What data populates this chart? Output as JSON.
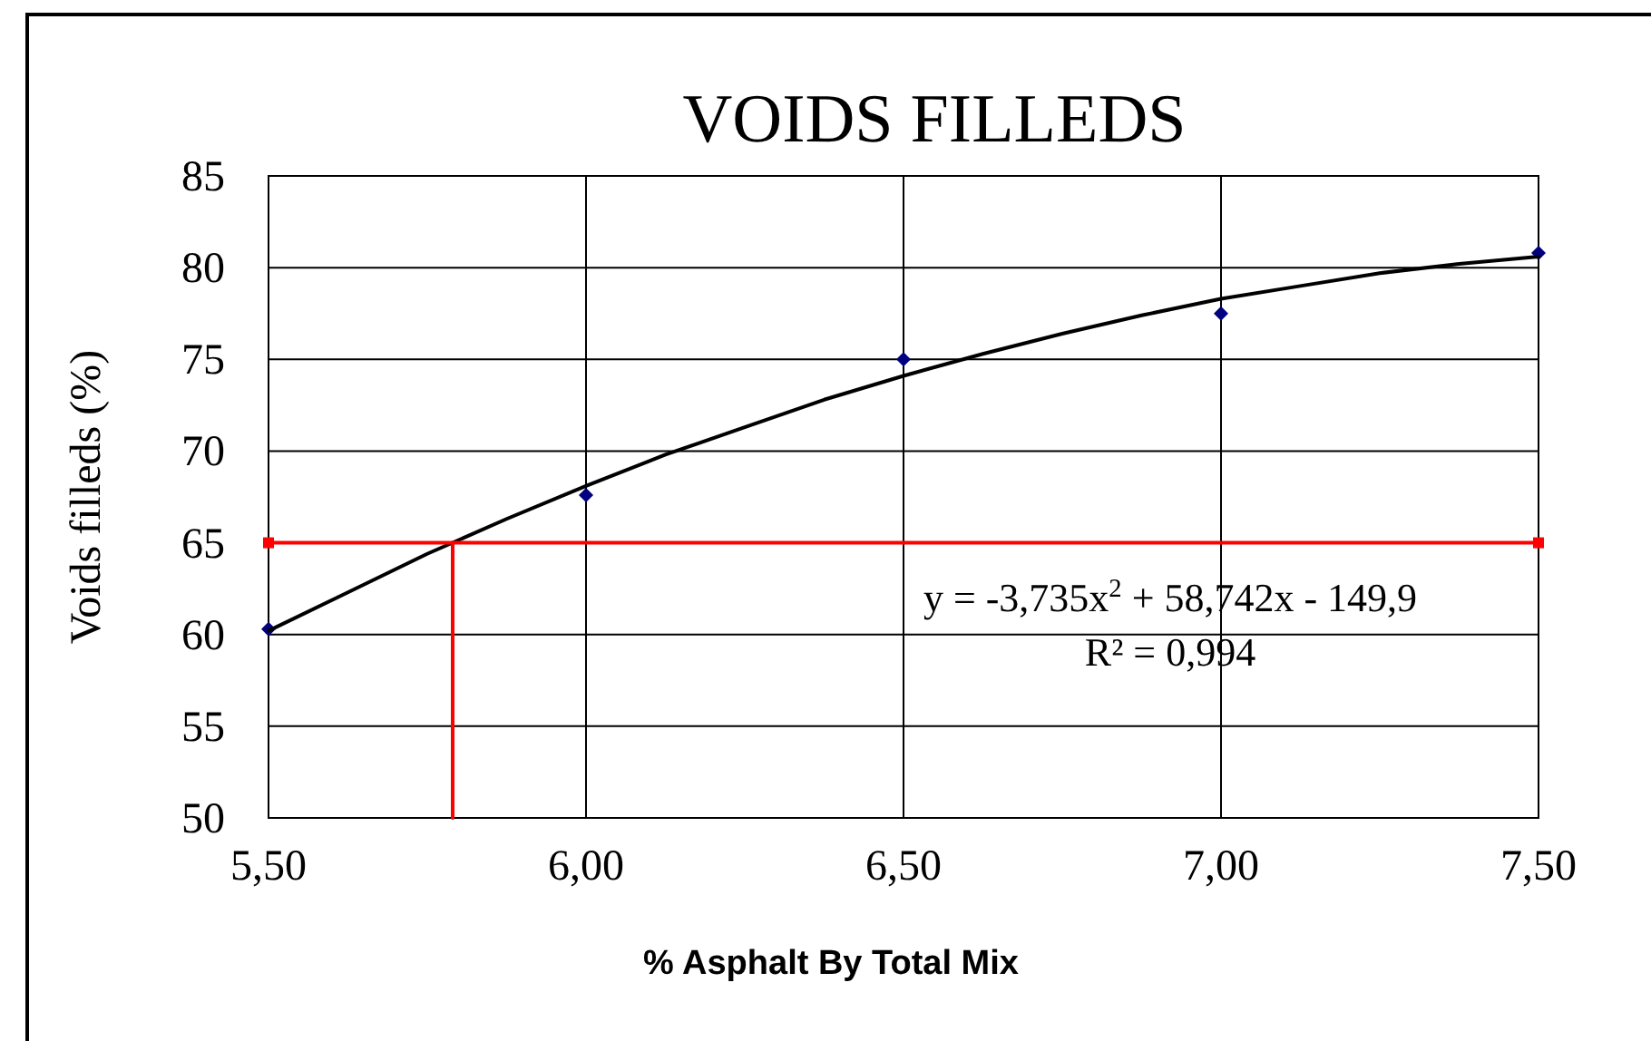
{
  "chart_data": {
    "type": "scatter",
    "title": "VOIDS FILLEDS",
    "xlabel": "% Asphalt By Total Mix",
    "ylabel": "Voids filleds (%)",
    "annotations": [
      "y = -3,735x$^{2}$ + 58,742x - 149,9",
      "R² = 0,994"
    ],
    "x": [
      5.5,
      6.0,
      6.5,
      7.0,
      7.5
    ],
    "series": [
      {
        "color": "#000080",
        "marker": "diamond",
        "values": [
          60.3,
          67.6,
          75.0,
          77.5,
          80.8
        ]
      },
      {
        "type": "line",
        "color": "#000000",
        "marker": "none",
        "x": [
          5.5,
          5.625,
          5.75,
          5.875,
          6.0,
          6.125,
          6.25,
          6.375,
          6.5,
          6.625,
          6.75,
          6.875,
          7.0,
          7.125,
          7.25,
          7.375,
          7.5
        ],
        "values": [
          60.2,
          62.3,
          64.4,
          66.3,
          68.1,
          69.8,
          71.3,
          72.8,
          74.1,
          75.3,
          76.4,
          77.4,
          78.3,
          79.0,
          79.7,
          80.2,
          80.6
        ]
      },
      {
        "type": "line",
        "color": "#ff0000",
        "marker": "square",
        "x": [
          5.5,
          7.5
        ],
        "values": [
          65,
          65
        ]
      },
      {
        "type": "line",
        "color": "#ff0000",
        "marker": "none",
        "x": [
          5.79,
          5.79
        ],
        "values": [
          50,
          65
        ]
      }
    ],
    "xlim": [
      5.5,
      7.5
    ],
    "xticks": [
      {
        "value": 5.5,
        "label": "5,50"
      },
      {
        "value": 6,
        "label": "6,00"
      },
      {
        "value": 6.5,
        "label": "6,50"
      },
      {
        "value": 7,
        "label": "7,00"
      },
      {
        "value": 7.5,
        "label": "7,50"
      }
    ],
    "ylim": [
      50,
      85
    ],
    "yticks": [
      50,
      55,
      60,
      65,
      70,
      75,
      80,
      85
    ],
    "grid": true
  }
}
